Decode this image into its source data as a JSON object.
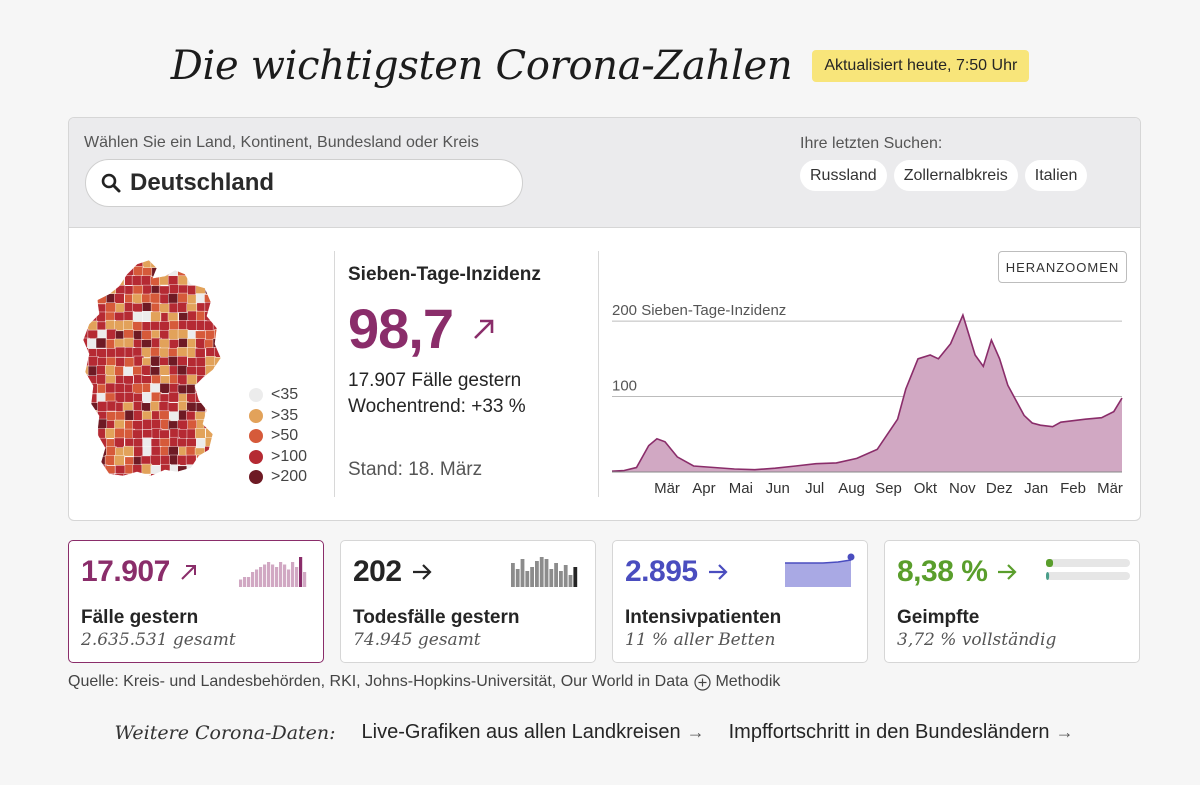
{
  "header": {
    "title": "Die wichtigsten Corona-Zahlen",
    "badge": "Aktualisiert heute, 7:50 Uhr"
  },
  "search": {
    "label": "Wählen Sie ein Land, Kontinent, Bundesland oder Kreis",
    "value": "Deutschland",
    "icon": "search-icon",
    "recent_label": "Ihre letzten Suchen:",
    "recent": [
      "Russland",
      "Zollernalbkreis",
      "Italien"
    ]
  },
  "legend": {
    "items": [
      {
        "label": "<35",
        "color": "#ececec"
      },
      {
        "label": ">35",
        "color": "#e2a25a"
      },
      {
        "label": ">50",
        "color": "#d65a3a"
      },
      {
        "label": ">100",
        "color": "#b52a33"
      },
      {
        "label": ">200",
        "color": "#6e1a24"
      }
    ]
  },
  "incidence": {
    "title": "Sieben-Tage-Inzidenz",
    "value": "98,7",
    "cases_line": "17.907 Fälle gestern",
    "trend_line": "Wochentrend: +33 %",
    "stand": "Stand: 18. März",
    "color": "#8a2d6a"
  },
  "zoom_button": "HERANZOOMEN",
  "chart_data": {
    "type": "area",
    "title": "",
    "ylabel": "Sieben-Tage-Inzidenz",
    "ylim": [
      0,
      220
    ],
    "y_gridlines": [
      100,
      200
    ],
    "y_tick_labels": [
      "100",
      "200 Sieben-Tage-Inzidenz"
    ],
    "x_tick_labels": [
      "Mär",
      "Apr",
      "Mai",
      "Jun",
      "Jul",
      "Aug",
      "Sep",
      "Okt",
      "Nov",
      "Dez",
      "Jan",
      "Feb",
      "Mär"
    ],
    "x": [
      0,
      0.3,
      0.6,
      0.9,
      1.1,
      1.3,
      1.6,
      2.0,
      2.5,
      3.0,
      3.5,
      4.0,
      4.5,
      5.0,
      5.5,
      6.0,
      6.5,
      7.0,
      7.2,
      7.5,
      7.8,
      8.0,
      8.3,
      8.6,
      8.9,
      9.1,
      9.3,
      9.5,
      9.7,
      9.9,
      10.1,
      10.3,
      10.5,
      10.8,
      11.0,
      11.3,
      11.6,
      12.0,
      12.3,
      12.5
    ],
    "values": [
      1,
      2,
      6,
      35,
      44,
      40,
      20,
      8,
      6,
      4,
      3,
      5,
      8,
      11,
      12,
      18,
      30,
      70,
      110,
      150,
      155,
      150,
      170,
      208,
      155,
      140,
      175,
      150,
      115,
      95,
      75,
      65,
      62,
      60,
      66,
      68,
      70,
      72,
      80,
      98
    ],
    "color": "#8a2d6a"
  },
  "tiles": [
    {
      "value": "17.907",
      "label": "Fälle gestern",
      "sub": "2.635.531 gesamt",
      "color": "#8a2d6a",
      "trend": "up"
    },
    {
      "value": "202",
      "label": "Todesfälle gestern",
      "sub": "74.945 gesamt",
      "color": "#252525",
      "trend": "flat"
    },
    {
      "value": "2.895",
      "label": "Intensivpatienten",
      "sub": "11 % aller Betten",
      "color": "#4a4dbf",
      "trend": "flat"
    },
    {
      "value": "8,38 %",
      "label": "Geimpfte",
      "sub": "3,72 % vollständig",
      "color": "#5a9e2c",
      "trend": "flat"
    }
  ],
  "tile_charts": {
    "cases_bars": [
      3,
      4,
      4,
      6,
      7,
      8,
      9,
      10,
      9,
      8,
      10,
      9,
      7,
      10,
      8,
      12,
      6
    ],
    "deaths_bars": [
      12,
      9,
      14,
      8,
      10,
      13,
      15,
      14,
      9,
      12,
      8,
      11,
      6,
      10
    ],
    "vaccinated_first": 8.38,
    "vaccinated_full": 3.72
  },
  "footer": {
    "source": "Quelle: Kreis- und Landesbehörden, RKI, Johns-Hopkins-Universität, Our World in Data",
    "method": "Methodik",
    "more_label": "Weitere Corona-Daten:",
    "links": [
      "Live-Grafiken aus allen Landkreisen",
      "Impffortschritt in den Bundesländern"
    ],
    "arrow": "→"
  }
}
